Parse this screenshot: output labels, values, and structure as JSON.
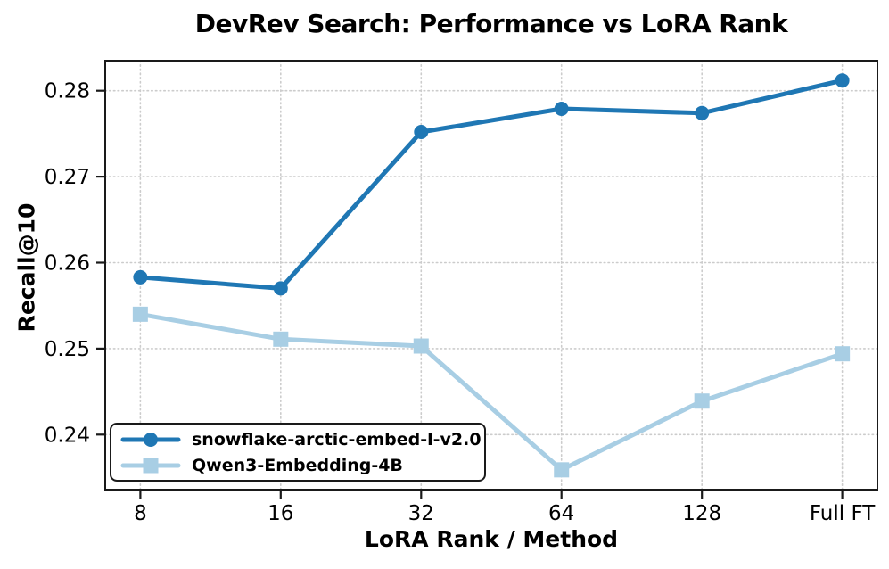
{
  "chart_data": {
    "type": "line",
    "title": "DevRev Search: Performance vs LoRA Rank",
    "xlabel": "LoRA Rank / Method",
    "ylabel": "Recall@10",
    "categories": [
      "8",
      "16",
      "32",
      "64",
      "128",
      "Full FT"
    ],
    "series": [
      {
        "name": "snowflake-arctic-embed-l-v2.0",
        "color": "#1f77b4",
        "marker": "circle",
        "values": [
          0.2583,
          0.257,
          0.2752,
          0.2779,
          0.2774,
          0.2812
        ]
      },
      {
        "name": "Qwen3-Embedding-4B",
        "color": "#a8cee4",
        "marker": "square",
        "values": [
          0.254,
          0.2511,
          0.2503,
          0.2359,
          0.2439,
          0.2494
        ]
      }
    ],
    "yticks": [
      0.24,
      0.25,
      0.26,
      0.27,
      0.28
    ],
    "ylim": [
      0.2336,
      0.2835
    ],
    "grid": "dotted-both-axes",
    "grid_color": "#cccccc",
    "axis_color": "#1a1a1a",
    "legend_position": "lower-left"
  }
}
